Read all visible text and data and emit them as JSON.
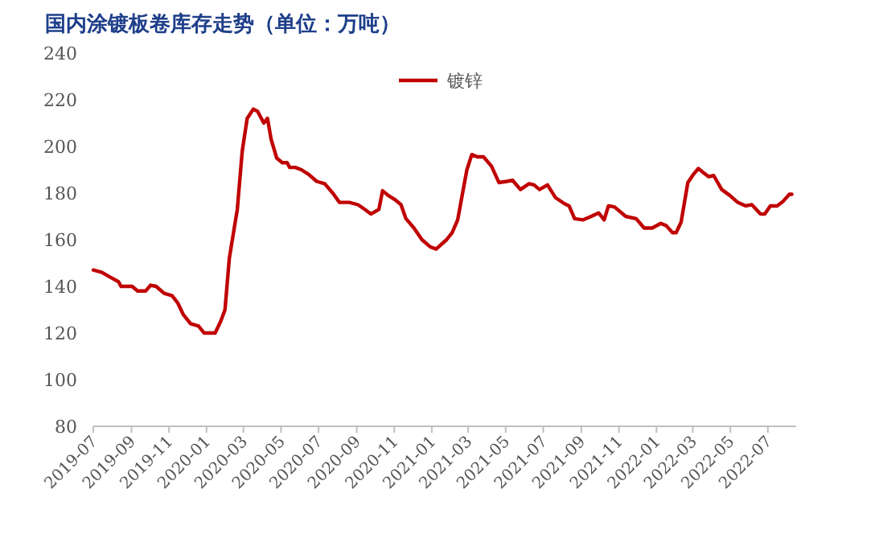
{
  "chart_data": {
    "type": "line",
    "title": "国内涂镀板卷库存走势（单位：万吨）",
    "x": [
      "2019-07-01",
      "2019-07-15",
      "2019-07-28",
      "2019-08-11",
      "2019-08-15",
      "2019-09-02",
      "2019-09-11",
      "2019-09-24",
      "2019-10-02",
      "2019-10-11",
      "2019-10-24",
      "2019-11-06",
      "2019-11-15",
      "2019-11-24",
      "2019-12-06",
      "2019-12-19",
      "2019-12-28",
      "2020-01-07",
      "2020-01-15",
      "2020-01-24",
      "2020-01-31",
      "2020-02-07",
      "2020-02-20",
      "2020-02-28",
      "2020-03-07",
      "2020-03-17",
      "2020-03-24",
      "2020-04-03",
      "2020-04-09",
      "2020-04-15",
      "2020-04-24",
      "2020-05-03",
      "2020-05-11",
      "2020-05-15",
      "2020-05-24",
      "2020-06-03",
      "2020-06-15",
      "2020-06-28",
      "2020-07-11",
      "2020-07-24",
      "2020-08-04",
      "2020-08-20",
      "2020-09-03",
      "2020-09-14",
      "2020-09-24",
      "2020-10-07",
      "2020-10-13",
      "2020-10-22",
      "2020-11-03",
      "2020-11-12",
      "2020-11-20",
      "2020-12-03",
      "2020-12-16",
      "2020-12-29",
      "2021-01-08",
      "2021-01-25",
      "2021-02-03",
      "2021-02-12",
      "2021-02-20",
      "2021-02-27",
      "2021-03-07",
      "2021-03-16",
      "2021-03-26",
      "2021-04-08",
      "2021-04-20",
      "2021-05-03",
      "2021-05-12",
      "2021-05-25",
      "2021-06-08",
      "2021-06-16",
      "2021-06-25",
      "2021-07-08",
      "2021-07-21",
      "2021-08-04",
      "2021-08-12",
      "2021-08-21",
      "2021-09-04",
      "2021-09-17",
      "2021-09-29",
      "2021-10-08",
      "2021-10-15",
      "2021-10-25",
      "2021-11-12",
      "2021-11-29",
      "2021-12-12",
      "2021-12-25",
      "2022-01-08",
      "2022-01-17",
      "2022-01-27",
      "2022-02-02",
      "2022-02-10",
      "2022-02-21",
      "2022-03-02",
      "2022-03-10",
      "2022-03-17",
      "2022-03-27",
      "2022-04-04",
      "2022-04-17",
      "2022-04-30",
      "2022-05-13",
      "2022-05-26",
      "2022-06-05",
      "2022-06-19",
      "2022-06-26",
      "2022-07-05",
      "2022-07-16",
      "2022-07-26",
      "2022-08-05",
      "2022-08-09"
    ],
    "series": [
      {
        "name": "镀锌",
        "color": "#c00000",
        "values": [
          147,
          146,
          144,
          142,
          140,
          140,
          138,
          138,
          140.5,
          140,
          137,
          136,
          133,
          128,
          124,
          123,
          120,
          120,
          120,
          125,
          130,
          152,
          173,
          198,
          212,
          216,
          215,
          210,
          212,
          203,
          195,
          193,
          193,
          191,
          191,
          190,
          188,
          185,
          184,
          180,
          176,
          176,
          175,
          173,
          171,
          173,
          181,
          179,
          177,
          175,
          169,
          165,
          160,
          157,
          156,
          160,
          163,
          168.5,
          180,
          190,
          196.5,
          195.5,
          195.5,
          191.5,
          184.5,
          185,
          185.5,
          181.5,
          184,
          183.5,
          181.5,
          183.5,
          178,
          175.5,
          174.5,
          169,
          168.5,
          170,
          171.5,
          168.5,
          174.5,
          174,
          170,
          169,
          165,
          165,
          167,
          166,
          163,
          163,
          167.5,
          184.5,
          188,
          190.5,
          189,
          187,
          187.5,
          181.5,
          179,
          176,
          174.5,
          175,
          171,
          171,
          174.5,
          174.5,
          176.5,
          179.5,
          179.5
        ]
      }
    ],
    "xlim": [
      "2019-07-01",
      "2022-08-16"
    ],
    "xticks": [
      {
        "value": "2019-07-01",
        "label": "2019-07"
      },
      {
        "value": "2019-09-01",
        "label": "2019-09"
      },
      {
        "value": "2019-11-01",
        "label": "2019-11"
      },
      {
        "value": "2020-01-01",
        "label": "2020-01"
      },
      {
        "value": "2020-03-01",
        "label": "2020-03"
      },
      {
        "value": "2020-05-01",
        "label": "2020-05"
      },
      {
        "value": "2020-07-01",
        "label": "2020-07"
      },
      {
        "value": "2020-09-01",
        "label": "2020-09"
      },
      {
        "value": "2020-11-01",
        "label": "2020-11"
      },
      {
        "value": "2021-01-01",
        "label": "2021-01"
      },
      {
        "value": "2021-03-01",
        "label": "2021-03"
      },
      {
        "value": "2021-05-01",
        "label": "2021-05"
      },
      {
        "value": "2021-07-01",
        "label": "2021-07"
      },
      {
        "value": "2021-09-01",
        "label": "2021-09"
      },
      {
        "value": "2021-11-01",
        "label": "2021-11"
      },
      {
        "value": "2022-01-01",
        "label": "2022-01"
      },
      {
        "value": "2022-03-01",
        "label": "2022-03"
      },
      {
        "value": "2022-05-01",
        "label": "2022-05"
      },
      {
        "value": "2022-07-01",
        "label": "2022-07"
      }
    ],
    "ylim": [
      80,
      240
    ],
    "yticks": [
      80,
      100,
      120,
      140,
      160,
      180,
      200,
      220,
      240
    ],
    "legend": "top",
    "grid": false,
    "marker": "none",
    "line_style": "solid"
  }
}
